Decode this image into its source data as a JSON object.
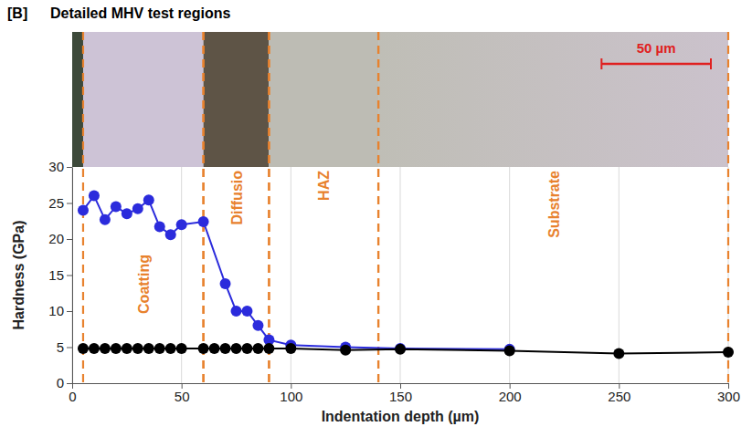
{
  "chart_data": {
    "type": "line",
    "panel": "[B]",
    "title": "Detailed MHV test regions",
    "x_label": "Indentation depth (µm)",
    "y_label": "Hardness (GPa)",
    "xlim": [
      0,
      300
    ],
    "xticks": [
      0,
      50,
      100,
      150,
      200,
      250,
      300
    ],
    "ylim": [
      0,
      30
    ],
    "yticks": [
      0,
      5,
      10,
      15,
      20,
      25,
      30
    ],
    "grid": "x",
    "marker": "circle",
    "series": [
      {
        "color": "#2b2bdc",
        "x": [
          5,
          10,
          15,
          20,
          25,
          30,
          35,
          40,
          45,
          50,
          60,
          70,
          75,
          80,
          85,
          90,
          100,
          125,
          150,
          200
        ],
        "values": [
          24,
          26,
          22.7,
          24.5,
          23.5,
          24.2,
          25.4,
          21.7,
          20.6,
          22,
          22.4,
          13.8,
          10,
          10,
          8,
          6,
          5.3,
          5,
          4.8,
          4.7
        ]
      },
      {
        "color": "#000000",
        "x": [
          5,
          10,
          15,
          20,
          25,
          30,
          35,
          40,
          45,
          50,
          60,
          65,
          70,
          75,
          80,
          85,
          90,
          100,
          125,
          150,
          200,
          250,
          300
        ],
        "values": [
          4.8,
          4.8,
          4.8,
          4.8,
          4.8,
          4.8,
          4.8,
          4.8,
          4.8,
          4.8,
          4.8,
          4.8,
          4.8,
          4.8,
          4.8,
          4.8,
          4.8,
          4.8,
          4.6,
          4.7,
          4.5,
          4.1,
          4.3
        ]
      }
    ],
    "regions": [
      {
        "label": "Coatting",
        "x0": 5,
        "x1": 60
      },
      {
        "label": "Diffusio",
        "x0": 60,
        "x1": 90
      },
      {
        "label": "HAZ",
        "x0": 90,
        "x1": 140
      },
      {
        "label": "Substrate",
        "x0": 140,
        "x1": 300
      }
    ],
    "scale_bar": {
      "label": "50 µm",
      "length": 50
    }
  }
}
